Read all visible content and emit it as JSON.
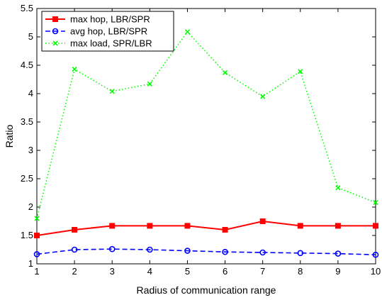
{
  "chart_data": {
    "type": "line",
    "xlabel": "Radius of communication range",
    "ylabel": "Ratio",
    "xlim": [
      1,
      10
    ],
    "ylim": [
      1,
      5.5
    ],
    "xticks": [
      "1",
      "2",
      "3",
      "4",
      "5",
      "6",
      "7",
      "8",
      "9",
      "10"
    ],
    "yticks": [
      "1",
      "1.5",
      "2",
      "2.5",
      "3",
      "3.5",
      "4",
      "4.5",
      "5",
      "5.5"
    ],
    "grid": false,
    "legend_position": "top-left",
    "x": [
      1,
      2,
      3,
      4,
      5,
      6,
      7,
      8,
      9,
      10
    ],
    "series": [
      {
        "name": "max hop, LBR/SPR",
        "color": "#ff0000",
        "line_style": "solid",
        "marker": "square",
        "values": [
          1.5,
          1.6,
          1.67,
          1.67,
          1.67,
          1.6,
          1.75,
          1.67,
          1.67,
          1.67
        ]
      },
      {
        "name": "avg hop, LBR/SPR",
        "color": "#0000ff",
        "line_style": "dashed",
        "marker": "circle",
        "values": [
          1.17,
          1.25,
          1.26,
          1.25,
          1.23,
          1.21,
          1.2,
          1.19,
          1.18,
          1.16
        ]
      },
      {
        "name": "max load, SPR/LBR",
        "color": "#00ff00",
        "line_style": "dotted",
        "marker": "x",
        "values": [
          1.8,
          4.43,
          4.04,
          4.17,
          5.09,
          4.37,
          3.95,
          4.39,
          2.34,
          2.08
        ]
      }
    ]
  }
}
